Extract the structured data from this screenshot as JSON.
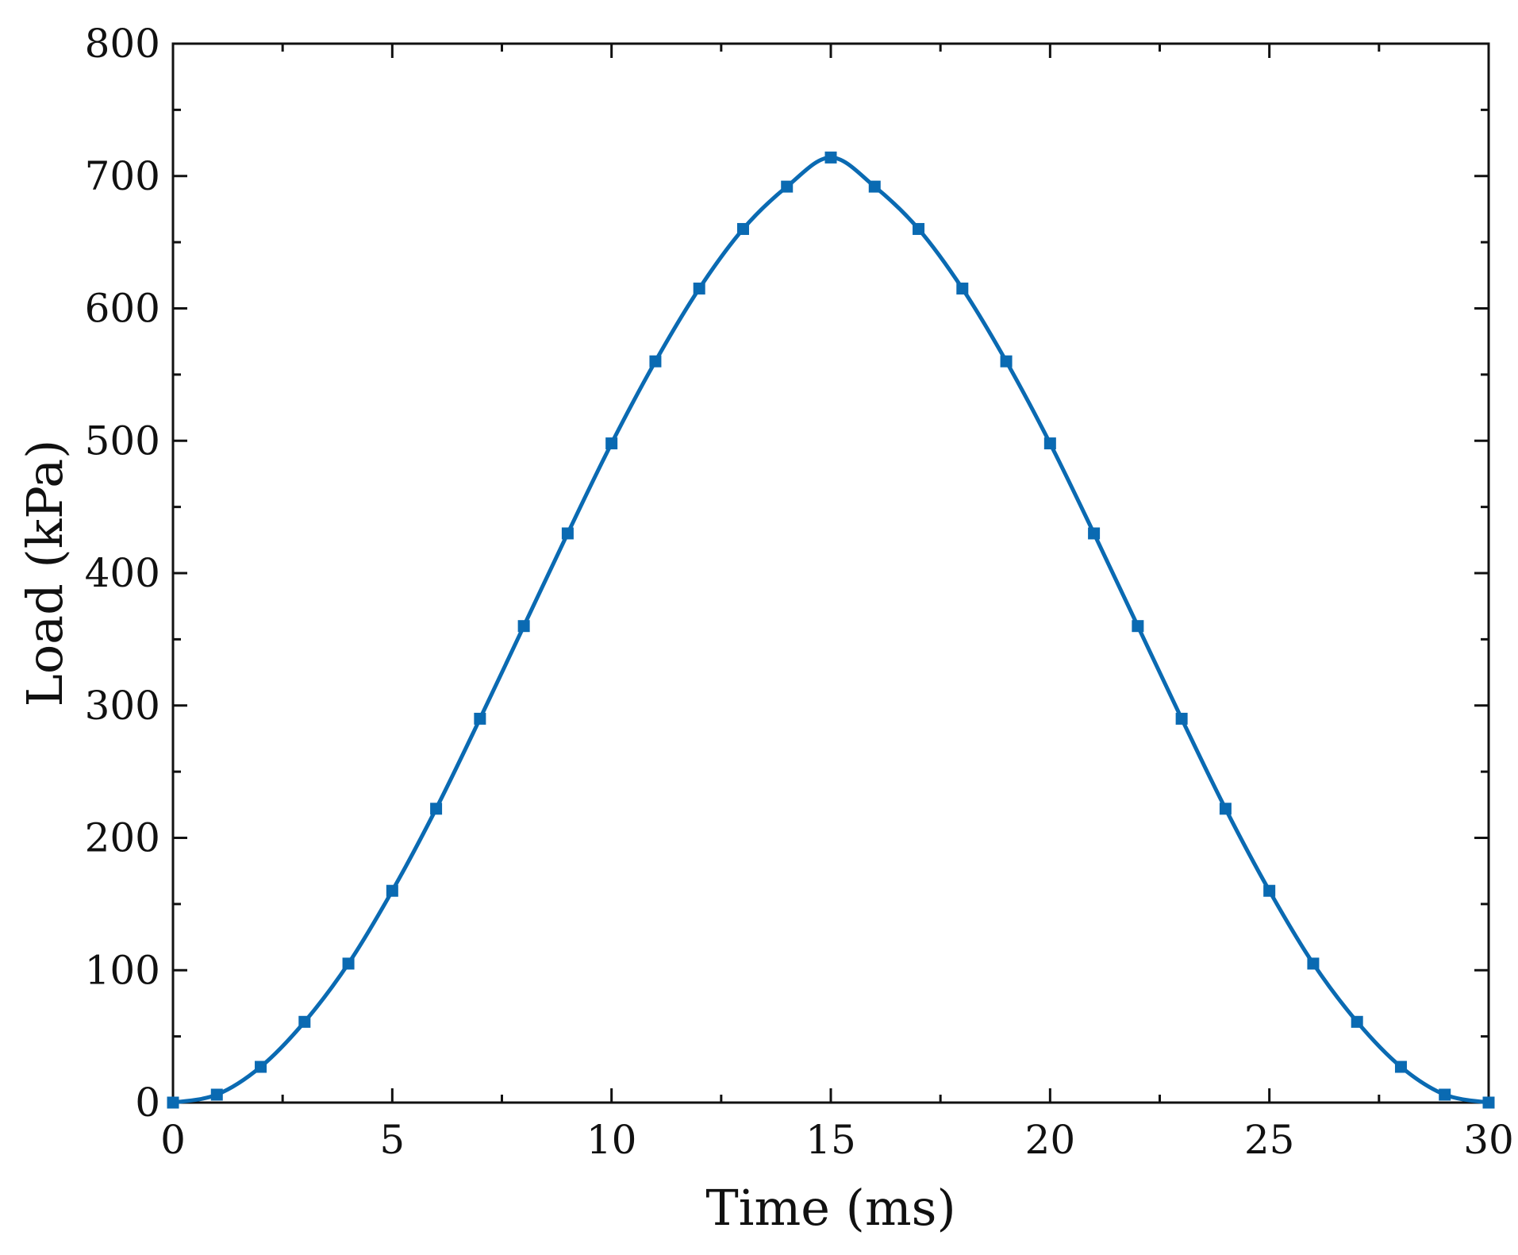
{
  "chart_data": {
    "type": "line",
    "title": "",
    "xlabel": "Time (ms)",
    "ylabel": "Load (kPa)",
    "xlim": [
      0,
      30
    ],
    "ylim": [
      0,
      800
    ],
    "xticks": [
      0,
      5,
      10,
      15,
      20,
      25,
      30
    ],
    "yticks": [
      0,
      100,
      200,
      300,
      400,
      500,
      600,
      700,
      800
    ],
    "x_minor_step": 2.5,
    "y_minor_step": 50,
    "grid": false,
    "legend": "none",
    "colors": {
      "series": "#0a6ab2",
      "axes": "#111111"
    },
    "series": [
      {
        "marker": "square",
        "x": [
          0,
          1,
          2,
          3,
          4,
          5,
          6,
          7,
          8,
          9,
          10,
          11,
          12,
          13,
          14,
          15,
          16,
          17,
          18,
          19,
          20,
          21,
          22,
          23,
          24,
          25,
          26,
          27,
          28,
          29,
          30
        ],
        "y": [
          0,
          6,
          27,
          61,
          105,
          160,
          222,
          290,
          360,
          430,
          498,
          560,
          615,
          660,
          692,
          714,
          692,
          660,
          615,
          560,
          498,
          430,
          360,
          290,
          222,
          160,
          105,
          61,
          27,
          6,
          0
        ]
      }
    ]
  }
}
